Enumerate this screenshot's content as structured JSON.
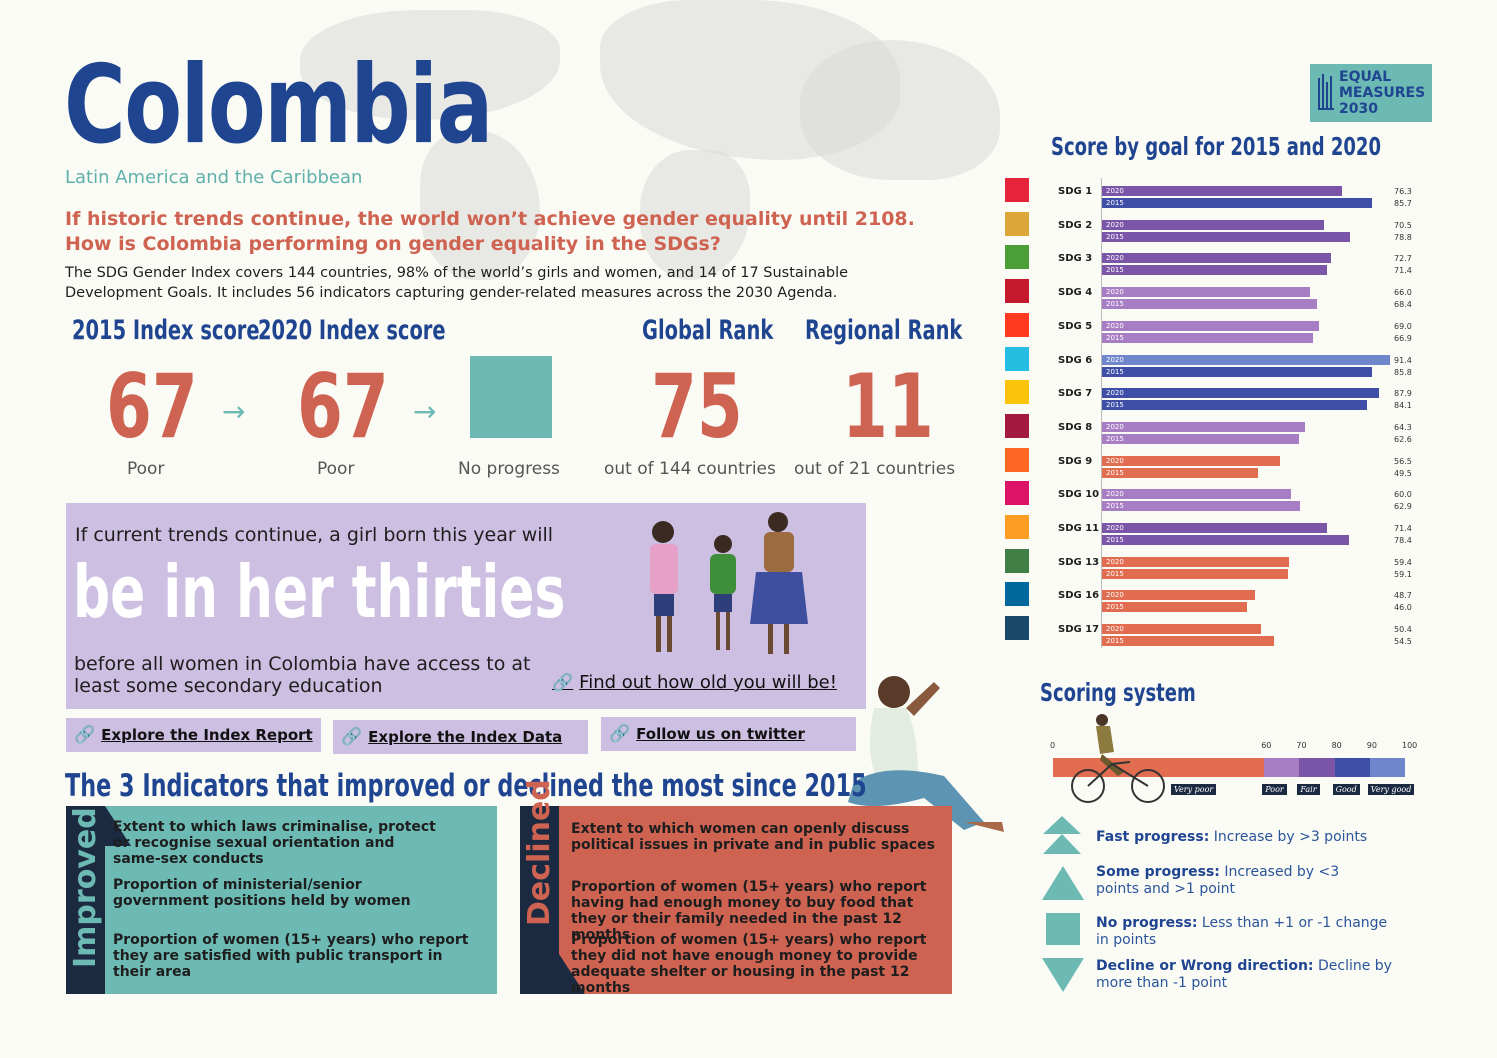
{
  "header": {
    "title": "Colombia",
    "region": "Latin America and the Caribbean",
    "headline_line1": "If historic trends continue, the world won’t achieve gender equality until 2108.",
    "headline_line2": "How is Colombia performing on gender equality in the SDGs?",
    "intro": "The SDG Gender Index covers 144 countries, 98% of the world’s girls and women, and 14 of 17 Sustainable Development Goals. It includes 56 indicators capturing gender-related measures across the 2030 Agenda."
  },
  "logo": {
    "line1": "EQUAL",
    "line2": "MEASURES",
    "line3": "2030"
  },
  "kpis": {
    "score2015_label": "2015 Index score",
    "score2015_value": "67",
    "score2015_sub": "Poor",
    "score2020_label": "2020  Index score",
    "score2020_value": "67",
    "score2020_sub": "Poor",
    "progress_sub": "No progress",
    "global_label": "Global Rank",
    "global_value": "75",
    "global_sub": "out of 144 countries",
    "regional_label": "Regional Rank",
    "regional_value": "11",
    "regional_sub": "out of 21 countries",
    "arrow_glyph": "→"
  },
  "girl_panel": {
    "intro": "If current trends continue, a girl born this year will",
    "big": "be in her thirties",
    "outro": "before all women in Colombia have access to at least some secondary education",
    "link": "Find out how old you will be!"
  },
  "links": {
    "report": "Explore the Index Report",
    "data": "Explore the Index Data",
    "twitter": "Follow us on twitter"
  },
  "indicators": {
    "title": "The 3 Indicators that improved or declined the most since 2015",
    "improved_label": "Improved",
    "declined_label": "Declined",
    "improved": [
      "Extent to which laws criminalise, protect or recognise sexual orientation and same-sex conducts",
      "Proportion of ministerial/senior government positions held by women",
      "Proportion of women (15+ years) who report they are satisfied with public transport in their area"
    ],
    "declined": [
      "Extent to which women can openly discuss political issues in private and in public spaces",
      "Proportion of women (15+ years) who report having had enough money to buy food that they or their family needed in the past 12 months",
      "Proportion of women (15+ years) who report they did not have enough money to provide adequate shelter or housing in the past 12 months"
    ]
  },
  "chart_data": {
    "type": "bar",
    "title": "Score by goal for 2015 and 2020",
    "series_tags": [
      "2020",
      "2015"
    ],
    "xlim": [
      0,
      100
    ],
    "categories": [
      "SDG 1",
      "SDG 2",
      "SDG 3",
      "SDG 4",
      "SDG 5",
      "SDG 6",
      "SDG 7",
      "SDG 8",
      "SDG 9",
      "SDG 10",
      "SDG 11",
      "SDG 13",
      "SDG 16",
      "SDG 17"
    ],
    "icon_colors": [
      "#e5243b",
      "#dda63a",
      "#4c9f38",
      "#c5192d",
      "#ff3a21",
      "#26bde2",
      "#fcc30b",
      "#a21942",
      "#fd6925",
      "#dd1367",
      "#fd9d24",
      "#3f7e44",
      "#00689d",
      "#19486a"
    ],
    "series": [
      {
        "name": "2020",
        "values": [
          76.3,
          70.5,
          72.7,
          66.0,
          69.0,
          91.4,
          87.9,
          64.3,
          56.5,
          60.0,
          71.4,
          59.4,
          48.7,
          50.4
        ],
        "colors": [
          "#7b55a8",
          "#7b55a8",
          "#7b55a8",
          "#a77dc4",
          "#a77dc4",
          "#6f86cc",
          "#3f4fa8",
          "#a77dc4",
          "#e16c4f",
          "#a77dc4",
          "#7b55a8",
          "#e16c4f",
          "#e16c4f",
          "#e16c4f"
        ]
      },
      {
        "name": "2015",
        "values": [
          85.7,
          78.8,
          71.4,
          68.4,
          66.9,
          85.8,
          84.1,
          62.6,
          49.5,
          62.9,
          78.4,
          59.1,
          46.0,
          54.5
        ],
        "colors": [
          "#3f4fa8",
          "#7b55a8",
          "#7b55a8",
          "#a77dc4",
          "#a77dc4",
          "#3f4fa8",
          "#3f4fa8",
          "#a77dc4",
          "#e16c4f",
          "#a77dc4",
          "#7b55a8",
          "#e16c4f",
          "#e16c4f",
          "#e16c4f"
        ]
      }
    ],
    "value_labels_2020": [
      "76.3",
      "70.5",
      "72.7",
      "66.0",
      "69.0",
      "91.4",
      "87.9",
      "64.3",
      "56.5",
      "60.0",
      "71.4",
      "59.4",
      "48.7",
      "50.4"
    ],
    "value_labels_2015": [
      "85.7",
      "78.8",
      "71.4",
      "68.4",
      "66.9",
      "85.8",
      "84.1",
      "62.6",
      "49.5",
      "62.9",
      "78.4",
      "59.1",
      "46.0",
      "54.5"
    ]
  },
  "scoring": {
    "title": "Scoring system",
    "ticks": [
      "0",
      "60",
      "70",
      "80",
      "90",
      "100"
    ],
    "tick_values": [
      0,
      60,
      70,
      80,
      90,
      100
    ],
    "bands": [
      {
        "label": "Very poor",
        "from": 0,
        "to": 60,
        "color": "#e16c4f"
      },
      {
        "label": "Poor",
        "from": 60,
        "to": 70,
        "color": "#a77dc4"
      },
      {
        "label": "Fair",
        "from": 70,
        "to": 80,
        "color": "#7b55a8"
      },
      {
        "label": "Good",
        "from": 80,
        "to": 90,
        "color": "#3f4fa8"
      },
      {
        "label": "Very good",
        "from": 90,
        "to": 100,
        "color": "#6f86cc"
      }
    ],
    "legend": [
      {
        "bold": "Fast progress:",
        "text": " Increase by >3 points"
      },
      {
        "bold": "Some progress:",
        "text": " Increased by <3 points and >1 point"
      },
      {
        "bold": "No progress:",
        "text": " Less than +1 or -1 change in points"
      },
      {
        "bold": "Decline or Wrong direction:",
        "text": " Decline by more than -1 point"
      }
    ]
  }
}
